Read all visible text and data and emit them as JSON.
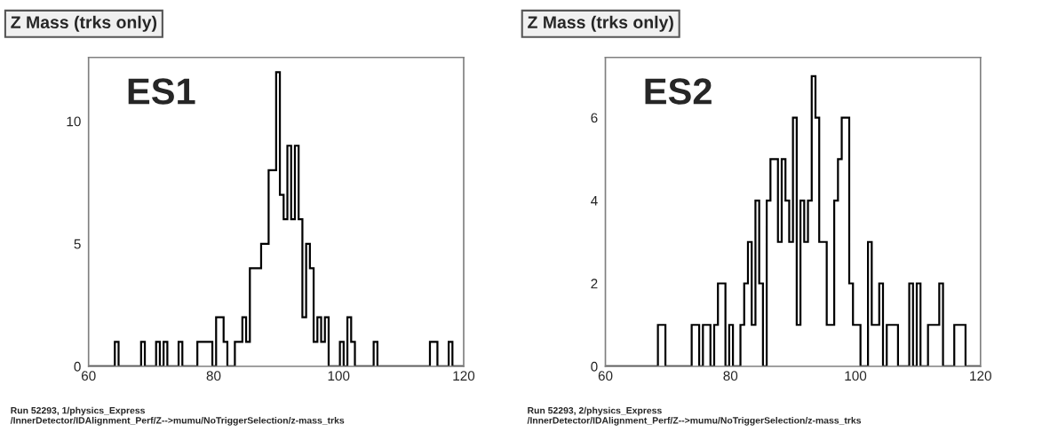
{
  "chart_data": [
    {
      "type": "histogram",
      "title": "Z Mass (trks only)",
      "color": "#000000",
      "grid": false,
      "annotations": [
        "ES1",
        "Run 52293, 1/physics_Express\n/InnerDetector/IDAlignment_Perf/Z-->mumu/NoTriggerSelection/z-mass_trks"
      ],
      "bins": [
        60,
        60.6,
        61.2,
        61.8,
        62.4,
        63,
        63.6,
        64.2,
        64.8,
        65.4,
        66,
        66.6,
        67.2,
        67.8,
        68.4,
        69,
        69.6,
        70.2,
        70.8,
        71.4,
        72,
        72.6,
        73.2,
        73.8,
        74.4,
        75,
        75.6,
        76.2,
        76.8,
        77.4,
        78,
        78.6,
        79.2,
        79.8,
        80.4,
        81,
        81.6,
        82.2,
        82.8,
        83.4,
        84,
        84.6,
        85.2,
        85.8,
        86.4,
        87,
        87.6,
        88.2,
        88.8,
        89.4,
        90,
        90.6,
        91.2,
        91.8,
        92.4,
        93,
        93.6,
        94.2,
        94.8,
        95.4,
        96,
        96.6,
        97.2,
        97.8,
        98.4,
        99,
        99.6,
        100.2,
        100.8,
        101.4,
        102,
        102.6,
        103.2,
        103.8,
        104.4,
        105,
        105.6,
        106.2,
        106.8,
        107.4,
        108,
        108.6,
        109.2,
        109.8,
        110.4,
        111,
        111.6,
        112.2,
        112.8,
        113.4,
        114,
        114.6,
        115.2,
        115.8,
        116.4,
        117,
        117.6,
        118.2,
        118.8,
        119.4,
        120
      ],
      "values": [
        0,
        0,
        0,
        0,
        0,
        0,
        0,
        1,
        0,
        0,
        0,
        0,
        0,
        0,
        1,
        0,
        0,
        0,
        1,
        0,
        1,
        0,
        0,
        0,
        1,
        0,
        0,
        0,
        0,
        1,
        1,
        1,
        1,
        0,
        2,
        2,
        1,
        0,
        0,
        1,
        1,
        2,
        1,
        4,
        4,
        4,
        5,
        5,
        8,
        8,
        12,
        7,
        6,
        9,
        6,
        9,
        6,
        2,
        5,
        4,
        1,
        2,
        1,
        2,
        0,
        0,
        0,
        1,
        0,
        2,
        1,
        0,
        0,
        0,
        0,
        0,
        1,
        0,
        0,
        0,
        0,
        0,
        0,
        0,
        0,
        0,
        0,
        0,
        0,
        0,
        0,
        1,
        1,
        0,
        0,
        0,
        1,
        0,
        0,
        0
      ],
      "xlim": [
        60,
        120
      ],
      "xticks": [
        60,
        80,
        100,
        120
      ],
      "ylim": [
        0,
        12.6
      ],
      "yticks": [
        0,
        5,
        10
      ]
    },
    {
      "type": "histogram",
      "title": "Z Mass (trks only)",
      "color": "#000000",
      "grid": false,
      "annotations": [
        "ES2",
        "Run 52293, 2/physics_Express\n/InnerDetector/IDAlignment_Perf/Z-->mumu/NoTriggerSelection/z-mass_trks"
      ],
      "bins": [
        60,
        60.6,
        61.2,
        61.8,
        62.4,
        63,
        63.6,
        64.2,
        64.8,
        65.4,
        66,
        66.6,
        67.2,
        67.8,
        68.4,
        69,
        69.6,
        70.2,
        70.8,
        71.4,
        72,
        72.6,
        73.2,
        73.8,
        74.4,
        75,
        75.6,
        76.2,
        76.8,
        77.4,
        78,
        78.6,
        79.2,
        79.8,
        80.4,
        81,
        81.6,
        82.2,
        82.8,
        83.4,
        84,
        84.6,
        85.2,
        85.8,
        86.4,
        87,
        87.6,
        88.2,
        88.8,
        89.4,
        90,
        90.6,
        91.2,
        91.8,
        92.4,
        93,
        93.6,
        94.2,
        94.8,
        95.4,
        96,
        96.6,
        97.2,
        97.8,
        98.4,
        99,
        99.6,
        100.2,
        100.8,
        101.4,
        102,
        102.6,
        103.2,
        103.8,
        104.4,
        105,
        105.6,
        106.2,
        106.8,
        107.4,
        108,
        108.6,
        109.2,
        109.8,
        110.4,
        111,
        111.6,
        112.2,
        112.8,
        113.4,
        114,
        114.6,
        115.2,
        115.8,
        116.4,
        117,
        117.6,
        118.2,
        118.8,
        119.4,
        120
      ],
      "values": [
        0,
        0,
        0,
        0,
        0,
        0,
        0,
        0,
        0,
        0,
        0,
        0,
        0,
        0,
        1,
        1,
        0,
        0,
        0,
        0,
        0,
        0,
        0,
        1,
        1,
        0,
        1,
        1,
        0,
        1,
        2,
        2,
        0,
        1,
        0,
        0,
        1,
        2,
        3,
        1,
        4,
        2,
        0,
        4,
        5,
        5,
        3,
        5,
        4,
        3,
        6,
        1,
        4,
        3,
        4,
        7,
        6,
        3,
        3,
        1,
        1,
        4,
        5,
        6,
        6,
        2,
        1,
        1,
        0,
        0,
        3,
        1,
        1,
        2,
        0,
        1,
        1,
        1,
        0,
        0,
        0,
        2,
        0,
        2,
        0,
        0,
        1,
        1,
        1,
        2,
        0,
        0,
        0,
        1,
        1,
        1,
        0,
        0,
        0,
        0
      ],
      "xlim": [
        60,
        120
      ],
      "xticks": [
        60,
        80,
        100,
        120
      ],
      "ylim": [
        0,
        7.45
      ],
      "yticks": [
        0,
        2,
        4,
        6
      ]
    }
  ]
}
